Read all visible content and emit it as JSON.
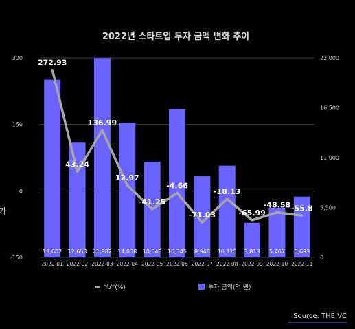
{
  "side_fragment": "가",
  "source_text": "Source: THE VC",
  "chart_data": {
    "type": "bar+line",
    "title": "2022년 스타트업 투자 금액 변화 추이",
    "categories": [
      "2022-01",
      "2022-02",
      "2022-03",
      "2022-04",
      "2022-05",
      "2022-06",
      "2022-07",
      "2022-08",
      "2022-09",
      "2022-10",
      "2022-11"
    ],
    "series": [
      {
        "name": "투자 금액(억 원)",
        "kind": "bar",
        "axis": "right",
        "color": "#6b63ff",
        "values": [
          19602,
          12653,
          21982,
          14838,
          10548,
          16345,
          8948,
          10115,
          3813,
          5467,
          6693
        ],
        "labels": [
          "19,602",
          "12,653",
          "21,982",
          "14,838",
          "10,548",
          "16,345",
          "8,948",
          "10,115",
          "3,813",
          "5,467",
          "6,693"
        ]
      },
      {
        "name": "YoY(%)",
        "kind": "line",
        "axis": "left",
        "color": "#a6a6a6",
        "values": [
          272.93,
          43.24,
          136.99,
          12.97,
          -41.25,
          -4.66,
          -71.03,
          -18.13,
          -65.99,
          -48.58,
          -55.8
        ],
        "labels": [
          "272.93",
          "43.24",
          "136.99",
          "12.97",
          "-41.25",
          "-4.66",
          "-71.03",
          "-18.13",
          "-65.99",
          "-48.58",
          "-55.8"
        ]
      }
    ],
    "left_axis": {
      "min": -150,
      "max": 300,
      "ticks": [
        "300",
        "150",
        "0",
        "-150"
      ],
      "tick_values": [
        300,
        150,
        0,
        -150
      ]
    },
    "right_axis": {
      "min": 0,
      "max": 22000,
      "ticks": [
        "22,000",
        "16,500",
        "11,000",
        "5,500",
        "0"
      ],
      "tick_values": [
        22000,
        16500,
        11000,
        5500,
        0
      ]
    },
    "grid": true,
    "legend_position": "bottom"
  }
}
